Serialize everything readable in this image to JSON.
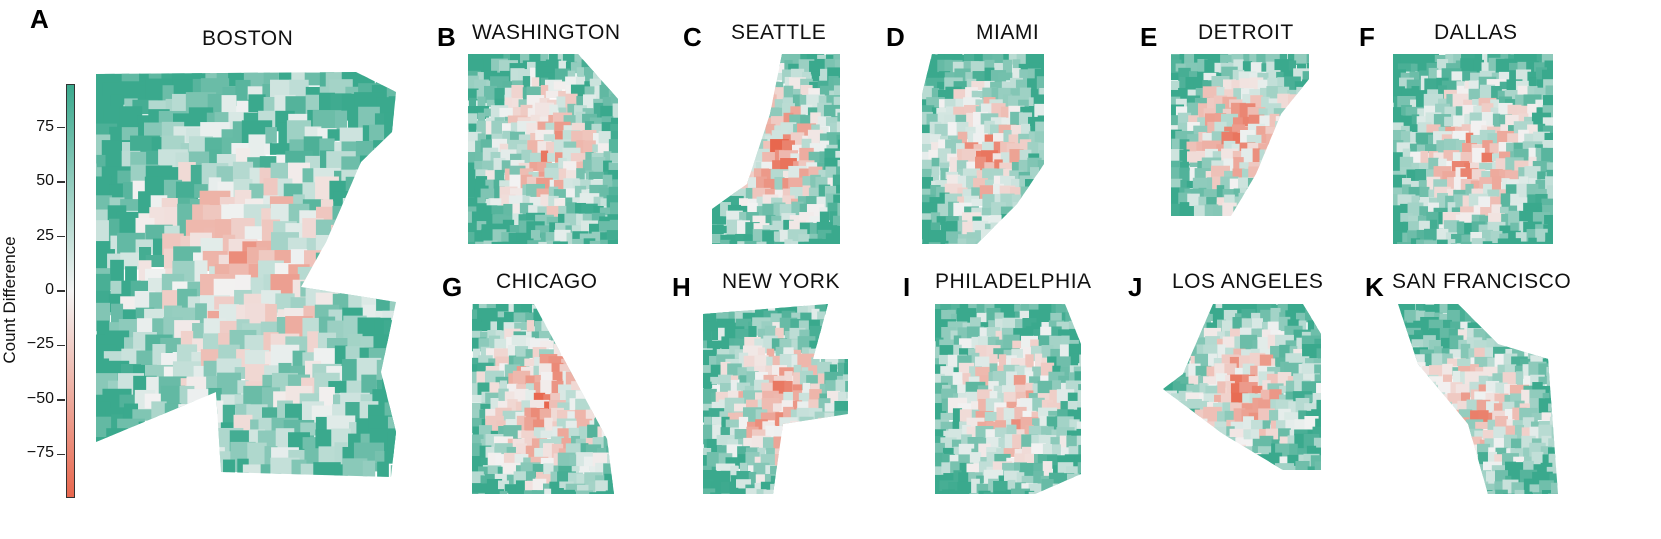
{
  "colors": {
    "positive": "#3aa98d",
    "neutral": "#f2f2f2",
    "negative": "#e8674e"
  },
  "colorbar": {
    "label": "Count Difference",
    "min": -95,
    "max": 95,
    "ticks": [
      {
        "value": 75,
        "label": "75"
      },
      {
        "value": 50,
        "label": "50"
      },
      {
        "value": 25,
        "label": "25"
      },
      {
        "value": 0,
        "label": "0"
      },
      {
        "value": -25,
        "label": "−25"
      },
      {
        "value": -50,
        "label": "−50"
      },
      {
        "value": -75,
        "label": "−75"
      }
    ]
  },
  "panels": [
    {
      "letter": "A",
      "city": "BOSTON",
      "bias": 0.15
    },
    {
      "letter": "B",
      "city": "WASHINGTON",
      "bias": 0.1
    },
    {
      "letter": "C",
      "city": "SEATTLE",
      "bias": 0.05
    },
    {
      "letter": "D",
      "city": "MIAMI",
      "bias": 0.05
    },
    {
      "letter": "E",
      "city": "DETROIT",
      "bias": -0.05
    },
    {
      "letter": "F",
      "city": "DALLAS",
      "bias": 0.1
    },
    {
      "letter": "G",
      "city": "CHICAGO",
      "bias": -0.05
    },
    {
      "letter": "H",
      "city": "NEW YORK",
      "bias": 0.05
    },
    {
      "letter": "I",
      "city": "PHILADELPHIA",
      "bias": 0.1
    },
    {
      "letter": "J",
      "city": "LOS ANGELES",
      "bias": 0.05
    },
    {
      "letter": "K",
      "city": "SAN FRANCISCO",
      "bias": 0.15
    }
  ]
}
